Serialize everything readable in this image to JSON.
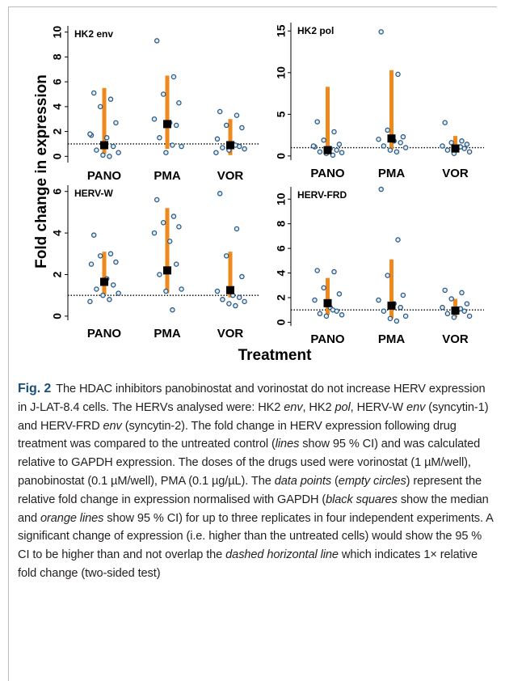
{
  "figure": {
    "ylabel": "Fold change in expression",
    "xlabel": "Treatment"
  },
  "chart_data": [
    {
      "type": "strip",
      "title": "HK2 env",
      "categories": [
        "PANO",
        "PMA",
        "VOR"
      ],
      "ylim": [
        -0.5,
        10.5
      ],
      "yticks": [
        0,
        2,
        4,
        6,
        8,
        10
      ],
      "reference_line": 1,
      "point_color": "#2b5a85",
      "ci_color": "#f0891c",
      "median_color": "#000000",
      "groups": [
        {
          "points": [
            5.1,
            4.6,
            4.0,
            2.7,
            1.7,
            1.5,
            0.8,
            0.5,
            0.3,
            0.1,
            0.0,
            1.8
          ],
          "median": 0.9,
          "ci": [
            0.2,
            5.5
          ]
        },
        {
          "points": [
            9.3,
            6.4,
            5.0,
            4.3,
            3.0,
            2.7,
            2.5,
            1.5,
            0.8,
            0.3,
            0.9
          ],
          "median": 2.6,
          "ci": [
            0.6,
            6.5
          ]
        },
        {
          "points": [
            3.6,
            3.3,
            2.5,
            2.3,
            1.4,
            1.0,
            0.8,
            0.7,
            0.6,
            0.5,
            0.9,
            0.3
          ],
          "median": 0.9,
          "ci": [
            0.1,
            3.0
          ]
        }
      ]
    },
    {
      "type": "strip",
      "title": "HK2 pol",
      "categories": [
        "PANO",
        "PMA",
        "VOR"
      ],
      "ylim": [
        -0.5,
        16
      ],
      "yticks": [
        0,
        5,
        10,
        15
      ],
      "reference_line": 1,
      "point_color": "#2b5a85",
      "ci_color": "#f0891c",
      "median_color": "#000000",
      "groups": [
        {
          "points": [
            4.1,
            2.9,
            1.9,
            1.4,
            1.1,
            0.9,
            0.7,
            0.5,
            0.4,
            0.3,
            0.1,
            1.2
          ],
          "median": 0.7,
          "ci": [
            0.3,
            8.3
          ]
        },
        {
          "points": [
            14.9,
            9.8,
            3.1,
            2.3,
            2.0,
            1.8,
            1.6,
            1.2,
            1.0,
            0.7,
            0.5
          ],
          "median": 2.1,
          "ci": [
            0.8,
            10.3
          ]
        },
        {
          "points": [
            4.0,
            1.8,
            1.6,
            1.4,
            1.2,
            1.0,
            0.9,
            0.7,
            0.5,
            0.3,
            1.1
          ],
          "median": 0.9,
          "ci": [
            0.4,
            2.4
          ]
        }
      ]
    },
    {
      "type": "strip",
      "title": "HERV-W",
      "categories": [
        "PANO",
        "PMA",
        "VOR"
      ],
      "ylim": [
        -0.2,
        6.3
      ],
      "yticks": [
        0,
        2,
        4,
        6
      ],
      "reference_line": 1,
      "point_color": "#2b5a85",
      "ci_color": "#f0891c",
      "median_color": "#000000",
      "groups": [
        {
          "points": [
            3.9,
            3.0,
            2.9,
            2.6,
            2.5,
            1.8,
            1.5,
            1.3,
            1.1,
            1.0,
            0.8,
            0.7
          ],
          "median": 1.65,
          "ci": [
            1.0,
            3.1
          ]
        },
        {
          "points": [
            5.6,
            4.8,
            4.5,
            4.3,
            4.0,
            3.6,
            2.5,
            2.0,
            1.3,
            1.2,
            0.3
          ],
          "median": 2.2,
          "ci": [
            1.1,
            5.2
          ]
        },
        {
          "points": [
            5.9,
            4.2,
            2.9,
            1.9,
            1.2,
            1.0,
            0.9,
            0.8,
            0.7,
            0.6,
            0.5
          ],
          "median": 1.25,
          "ci": [
            0.9,
            3.1
          ]
        }
      ]
    },
    {
      "type": "strip",
      "title": "HERV-FRD",
      "categories": [
        "PANO",
        "PMA",
        "VOR"
      ],
      "ylim": [
        -0.3,
        11
      ],
      "yticks": [
        0,
        2,
        4,
        6,
        8,
        10
      ],
      "reference_line": 1,
      "point_color": "#2b5a85",
      "ci_color": "#f0891c",
      "median_color": "#000000",
      "groups": [
        {
          "points": [
            4.2,
            4.1,
            2.8,
            2.3,
            1.8,
            1.2,
            0.9,
            0.7,
            0.6,
            0.5,
            1.0
          ],
          "median": 1.55,
          "ci": [
            0.6,
            3.6
          ]
        },
        {
          "points": [
            10.8,
            6.7,
            3.8,
            2.2,
            1.8,
            1.5,
            1.2,
            0.9,
            0.5,
            0.3,
            0.1
          ],
          "median": 1.35,
          "ci": [
            0.3,
            5.1
          ]
        },
        {
          "points": [
            2.6,
            2.4,
            1.9,
            1.5,
            1.2,
            1.0,
            0.9,
            0.7,
            0.5,
            0.4,
            1.1
          ],
          "median": 0.95,
          "ci": [
            0.4,
            1.9
          ]
        }
      ]
    }
  ],
  "caption": {
    "label": "Fig. 2",
    "runs": [
      {
        "text": "The HDAC inhibitors panobinostat and vorinostat do not increase HERV expression in J-LAT-8.4 cells. The HERVs analysed were: HK2 "
      },
      {
        "text": "env",
        "italic": true
      },
      {
        "text": ", HK2 "
      },
      {
        "text": "pol",
        "italic": true
      },
      {
        "text": ", HERV-W "
      },
      {
        "text": "env",
        "italic": true
      },
      {
        "text": " (syncytin-1) and HERV-FRD "
      },
      {
        "text": "env",
        "italic": true
      },
      {
        "text": " (syncytin-2). The fold change in HERV expression following drug treatment was compared to the untreated control ("
      },
      {
        "text": "lines",
        "italic": true
      },
      {
        "text": " show 95 % CI) and was calculated relative to GAPDH expression. The doses of the drugs used were vorinostat (1 µM/well), panobinostat (0.1 µM/well), PMA (0.1 µg/µL). The "
      },
      {
        "text": "data points",
        "italic": true
      },
      {
        "text": " ("
      },
      {
        "text": "empty circles",
        "italic": true
      },
      {
        "text": ") represent the relative fold change in expression normalised with GAPDH ("
      },
      {
        "text": "black squares",
        "italic": true
      },
      {
        "text": " show the median and "
      },
      {
        "text": "orange lines",
        "italic": true
      },
      {
        "text": " show 95 % CI) for up to three replicates in four independent experiments. A significant change of expression (i.e. higher than the untreated cells) would show the 95 % CI to be higher than and not overlap the "
      },
      {
        "text": "dashed horizontal line",
        "italic": true
      },
      {
        "text": " which indicates 1× relative fold change (two-sided test)"
      }
    ]
  }
}
